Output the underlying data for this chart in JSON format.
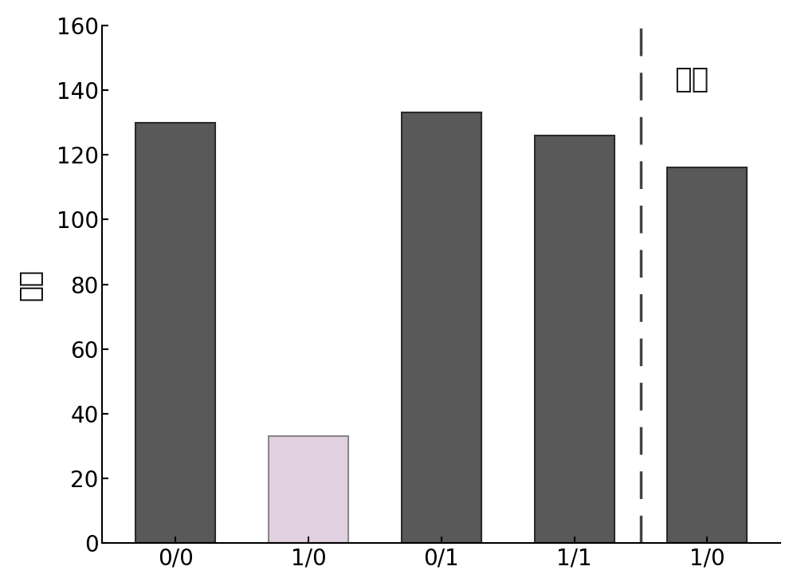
{
  "categories": [
    "0/0",
    "1/0",
    "0/1",
    "1/1",
    "1/0"
  ],
  "values": [
    130,
    33,
    133,
    126,
    116
  ],
  "bar_colors": [
    "#595959",
    "#e0d0e0",
    "#595959",
    "#595959",
    "#595959"
  ],
  "bar_edgecolors": [
    "#2a2a2a",
    "#888888",
    "#2a2a2a",
    "#2a2a2a",
    "#2a2a2a"
  ],
  "ylabel": "红値",
  "ylim": [
    0,
    160
  ],
  "yticks": [
    0,
    20,
    40,
    60,
    80,
    100,
    120,
    140,
    160
  ],
  "dashed_line_label": "重置",
  "dashed_line_color": "#444444",
  "background_color": "#ffffff",
  "bar_width": 0.6,
  "ylabel_fontsize": 24,
  "tick_fontsize": 20,
  "annotation_fontsize": 26
}
